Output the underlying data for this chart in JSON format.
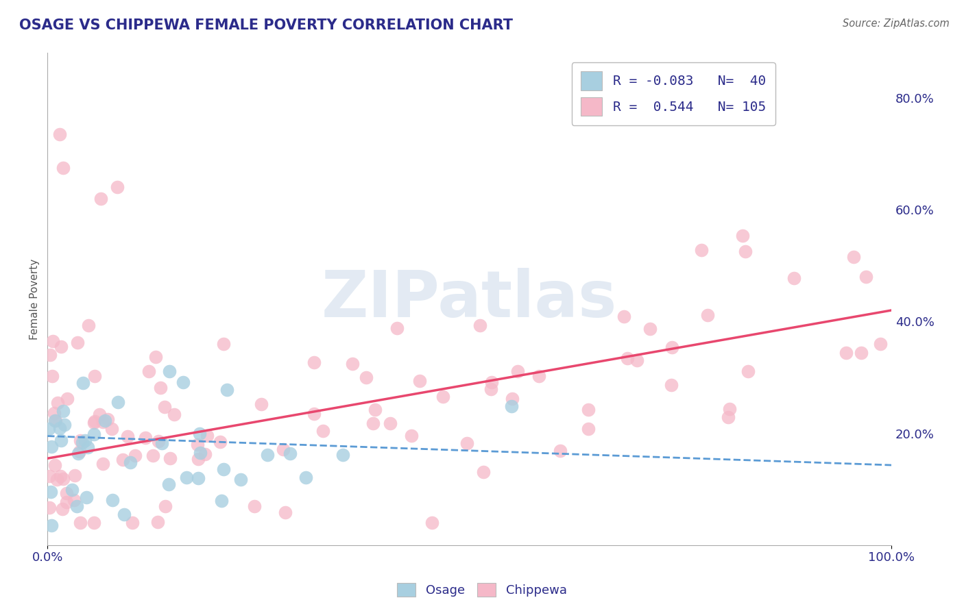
{
  "title": "OSAGE VS CHIPPEWA FEMALE POVERTY CORRELATION CHART",
  "source": "Source: ZipAtlas.com",
  "ylabel": "Female Poverty",
  "xlim": [
    0,
    1.0
  ],
  "ylim": [
    0,
    0.88
  ],
  "osage_R": -0.083,
  "osage_N": 40,
  "chippewa_R": 0.544,
  "chippewa_N": 105,
  "osage_color": "#a8cfe0",
  "chippewa_color": "#f5b8c8",
  "osage_line_color": "#5b9bd5",
  "chippewa_line_color": "#e8476e",
  "background_color": "#ffffff",
  "grid_color": "#cccccc",
  "title_color": "#2b2b8a",
  "source_color": "#666666",
  "right_yticks": [
    0.2,
    0.4,
    0.6,
    0.8
  ],
  "right_ytick_labels": [
    "20.0%",
    "40.0%",
    "60.0%",
    "80.0%"
  ],
  "watermark_text": "ZIPatlas",
  "watermark_color": "#ccdaea",
  "legend_text_color": "#2b2b8a",
  "osage_line_intercept": 0.195,
  "osage_line_slope": -0.052,
  "chippewa_line_intercept": 0.155,
  "chippewa_line_slope": 0.265
}
